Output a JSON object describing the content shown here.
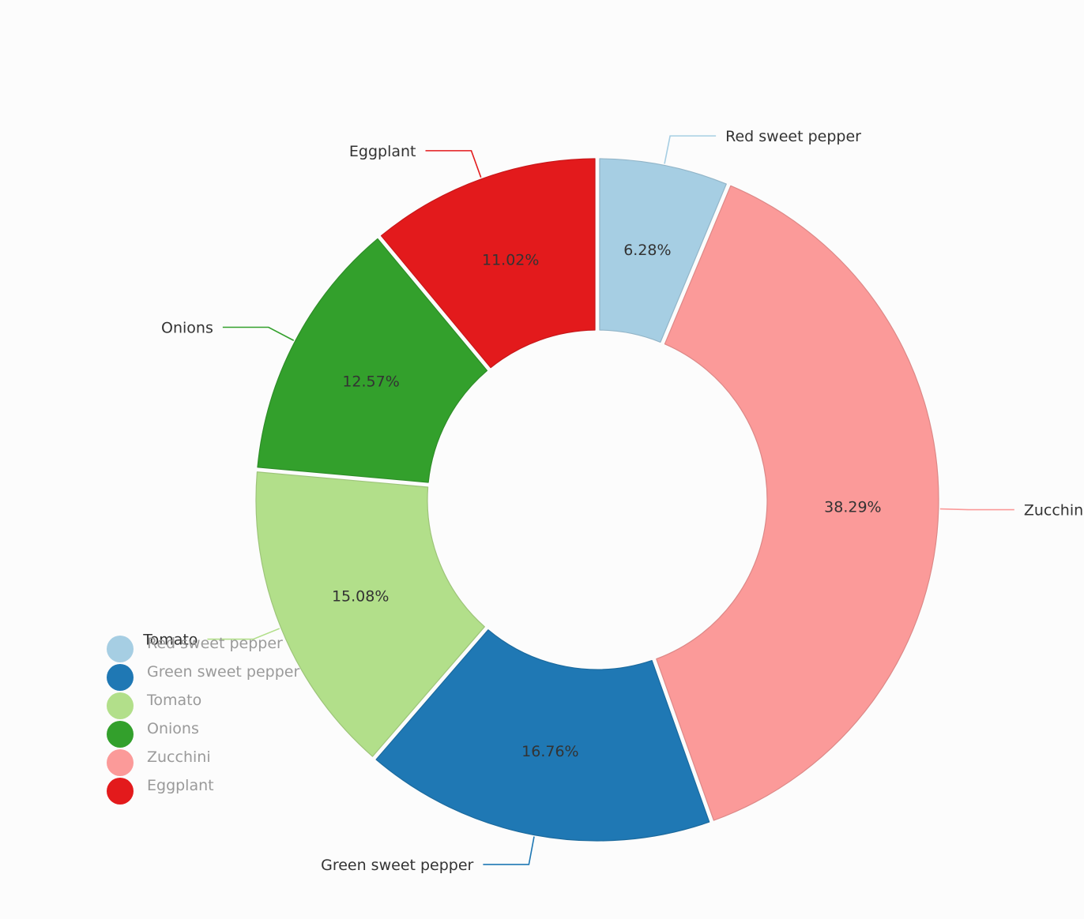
{
  "chart_data": {
    "type": "pie",
    "variant": "donut",
    "legend_position": "bottom-left",
    "series": [
      {
        "name": "Red sweet pepper",
        "value": 6.28,
        "label": "6.28%",
        "color": "#a6cee3"
      },
      {
        "name": "Zucchini",
        "value": 38.29,
        "label": "38.29%",
        "color": "#fb9a99"
      },
      {
        "name": "Green sweet pepper",
        "value": 16.76,
        "label": "16.76%",
        "color": "#1f78b4"
      },
      {
        "name": "Tomato",
        "value": 15.08,
        "label": "15.08%",
        "color": "#b2df8a"
      },
      {
        "name": "Onions",
        "value": 12.57,
        "label": "12.57%",
        "color": "#33a02c"
      },
      {
        "name": "Eggplant",
        "value": 11.02,
        "label": "11.02%",
        "color": "#e31a1c"
      }
    ],
    "legend": [
      {
        "name": "Red sweet pepper",
        "color": "#a6cee3"
      },
      {
        "name": "Green sweet pepper",
        "color": "#1f78b4"
      },
      {
        "name": "Tomato",
        "color": "#b2df8a"
      },
      {
        "name": "Onions",
        "color": "#33a02c"
      },
      {
        "name": "Zucchini",
        "color": "#fb9a99"
      },
      {
        "name": "Eggplant",
        "color": "#e31a1c"
      }
    ]
  }
}
